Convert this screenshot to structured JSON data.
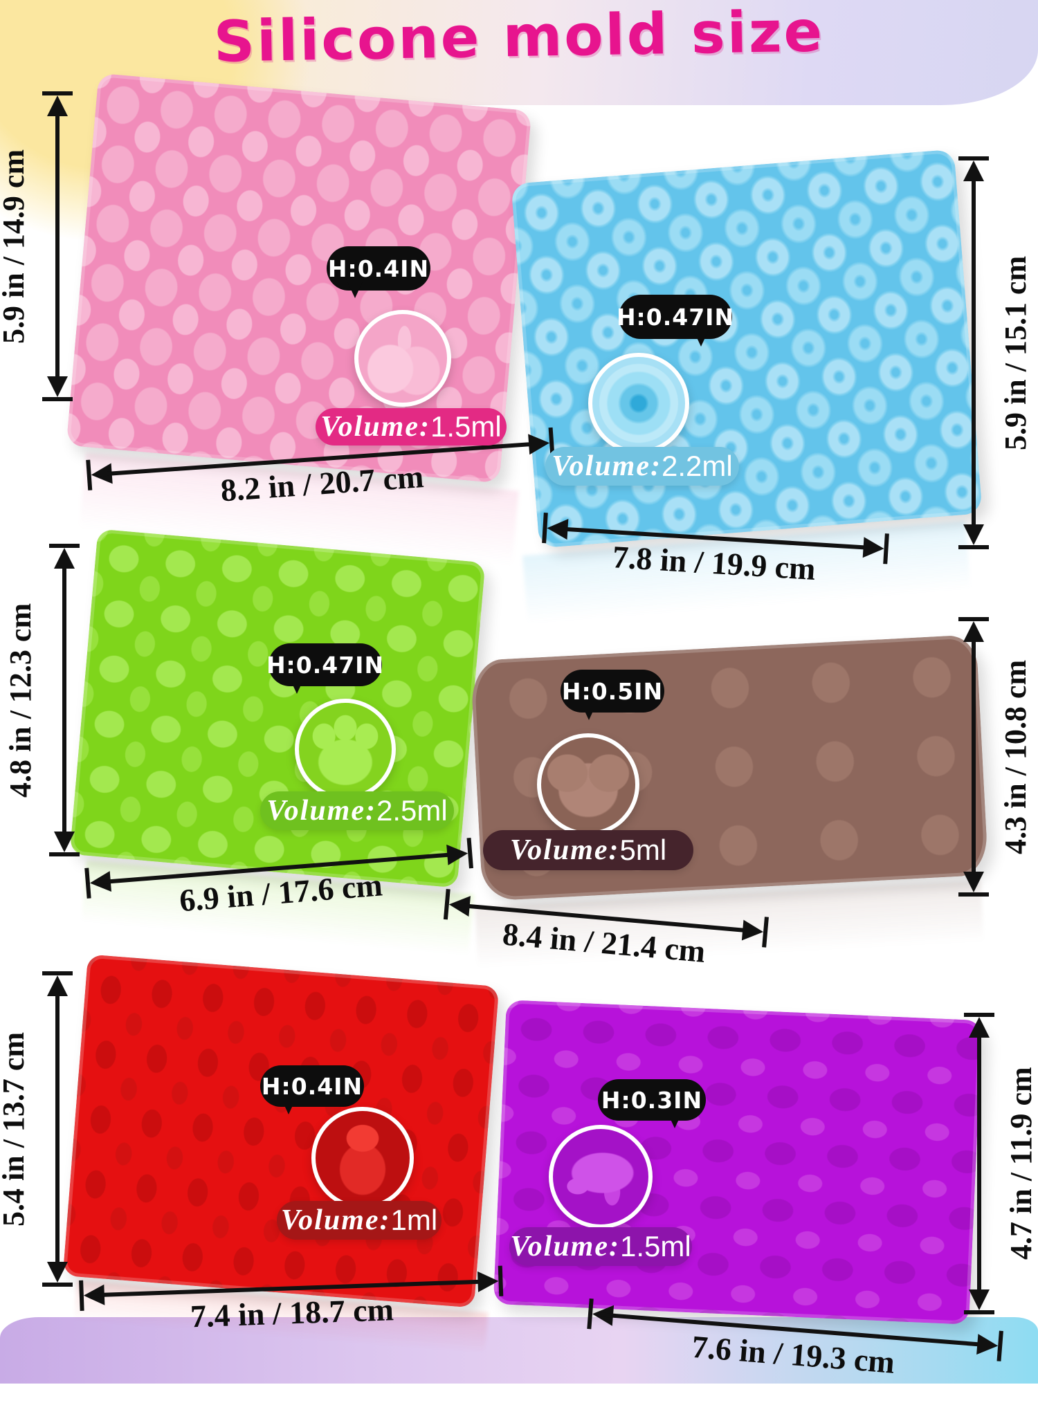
{
  "title": "Silicone mold size",
  "title_color": "#e7148e",
  "molds": [
    {
      "color_name": "pink",
      "shape": "fruit",
      "bubble": "H:0.4IN",
      "volume_label": "Volume:",
      "volume_value": "1.5ml",
      "width": "8.2 in / 20.7 cm",
      "height": "5.9 in / 14.9 cm",
      "base_color": "#f18cba",
      "pill_color": "#e32a84"
    },
    {
      "color_name": "blue",
      "shape": "donut",
      "bubble": "H:0.47IN",
      "volume_label": "Volume:",
      "volume_value": "2.2ml",
      "width": "7.8 in / 19.9 cm",
      "height": "5.9 in / 15.1 cm",
      "base_color": "#63c4eb",
      "pill_color": "#72c3e1"
    },
    {
      "color_name": "green",
      "shape": "paw-and-gummy-bear",
      "bubble": "H:0.47IN",
      "volume_label": "Volume:",
      "volume_value": "2.5ml",
      "width": "6.9 in / 17.6 cm",
      "height": "4.8 in / 12.3 cm",
      "base_color": "#7fd51b",
      "pill_color": "#6fc11f"
    },
    {
      "color_name": "brown",
      "shape": "animal-chocolate",
      "bubble": "H:0.5IN",
      "volume_label": "Volume:",
      "volume_value": "5ml",
      "width": "8.4 in / 21.4 cm",
      "height": "4.3 in / 10.8 cm",
      "base_color": "#8d675c",
      "pill_color": "#45242c"
    },
    {
      "color_name": "red",
      "shape": "gummy-bear",
      "bubble": "H:0.4IN",
      "volume_label": "Volume:",
      "volume_value": "1ml",
      "width": "7.4 in / 18.7 cm",
      "height": "5.4 in / 13.7 cm",
      "base_color": "#e51011",
      "pill_color": "#a51717"
    },
    {
      "color_name": "purple",
      "shape": "dinosaur",
      "bubble": "H:0.3IN",
      "volume_label": "Volume:",
      "volume_value": "1.5ml",
      "width": "7.6 in / 19.3 cm",
      "height": "4.7 in / 11.9 cm",
      "base_color": "#b712da",
      "pill_color": "#8d14ab"
    }
  ]
}
